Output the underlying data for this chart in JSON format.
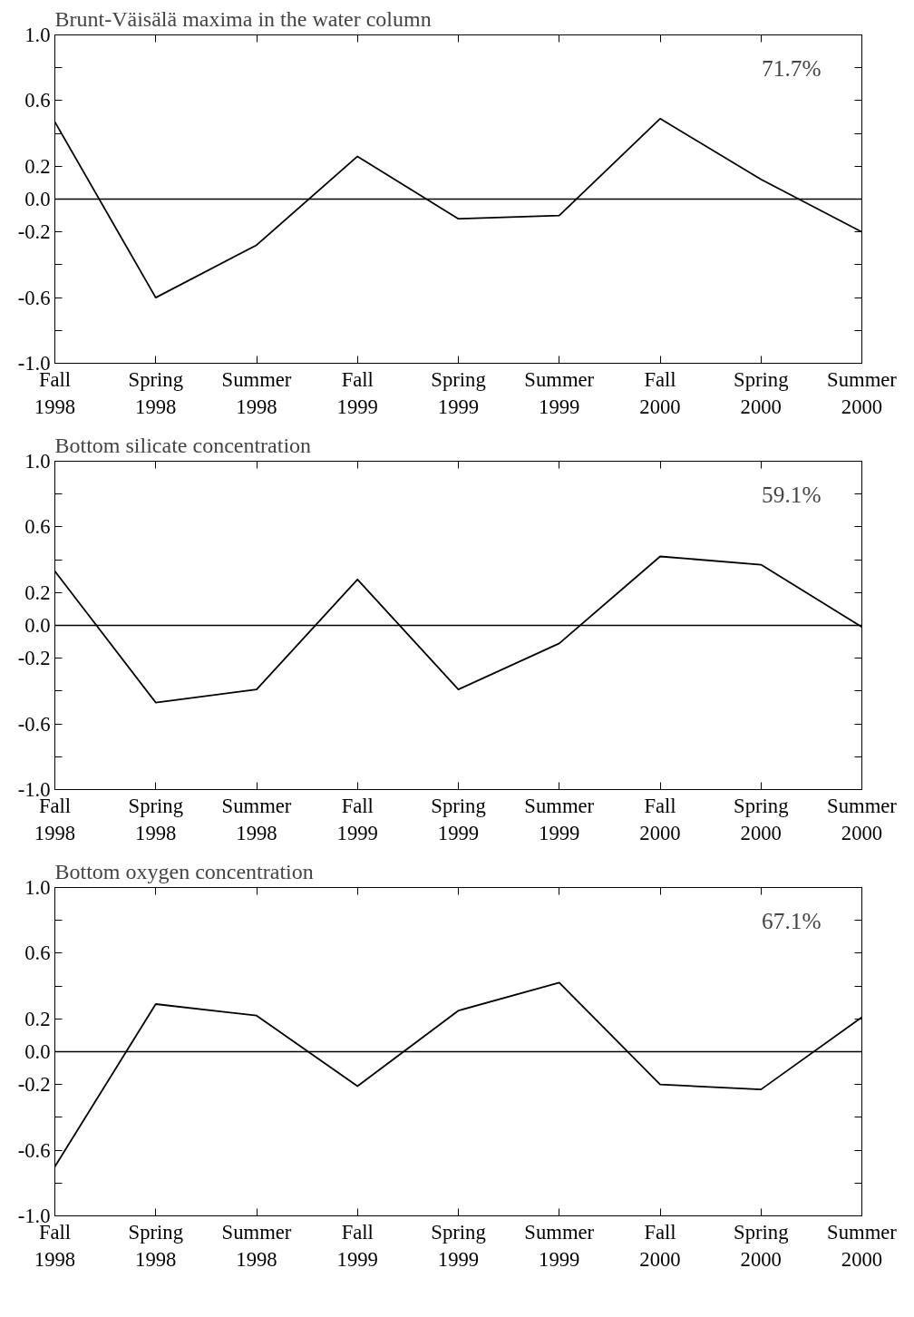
{
  "chart_data": [
    {
      "type": "line",
      "title": "Brunt-Väisälä maxima in the water column",
      "categories": [
        "Fall\n1998",
        "Spring\n1998",
        "Summer\n1998",
        "Fall\n1999",
        "Spring\n1999",
        "Summer\n1999",
        "Fall\n2000",
        "Spring\n2000",
        "Summer\n2000"
      ],
      "series": [
        {
          "color": "#000000",
          "values": [
            0.47,
            -0.6,
            -0.28,
            0.26,
            -0.12,
            -0.1,
            0.49,
            0.12,
            -0.2
          ]
        }
      ],
      "ylim": [
        -1,
        1
      ],
      "yticks": [
        {
          "value": -1,
          "label": "-1.0"
        },
        {
          "value": -0.8,
          "label": null
        },
        -0.6,
        {
          "value": -0.4,
          "label": null
        },
        -0.2,
        {
          "value": 0,
          "label": "0.0"
        },
        0.2,
        {
          "value": 0.4,
          "label": null
        },
        0.6,
        {
          "value": 0.8,
          "label": null
        },
        {
          "value": 1,
          "label": "1.0"
        }
      ],
      "annotations": [
        "71.7%"
      ],
      "ref_lines": [
        {
          "axis": "y",
          "value": 0,
          "color": "#000000"
        }
      ],
      "grid": false,
      "marker": "none",
      "line_style": "solid"
    },
    {
      "type": "line",
      "title": "Bottom silicate concentration",
      "categories": [
        "Fall\n1998",
        "Spring\n1998",
        "Summer\n1998",
        "Fall\n1999",
        "Spring\n1999",
        "Summer\n1999",
        "Fall\n2000",
        "Spring\n2000",
        "Summer\n2000"
      ],
      "series": [
        {
          "color": "#000000",
          "values": [
            0.33,
            -0.47,
            -0.39,
            0.28,
            -0.39,
            -0.11,
            0.42,
            0.37,
            -0.01
          ]
        }
      ],
      "ylim": [
        -1,
        1
      ],
      "yticks": [
        {
          "value": -1,
          "label": "-1.0"
        },
        {
          "value": -0.8,
          "label": null
        },
        -0.6,
        {
          "value": -0.4,
          "label": null
        },
        -0.2,
        {
          "value": 0,
          "label": "0.0"
        },
        0.2,
        {
          "value": 0.4,
          "label": null
        },
        0.6,
        {
          "value": 0.8,
          "label": null
        },
        {
          "value": 1,
          "label": "1.0"
        }
      ],
      "annotations": [
        "59.1%"
      ],
      "ref_lines": [
        {
          "axis": "y",
          "value": 0,
          "color": "#000000"
        }
      ],
      "grid": false,
      "marker": "none",
      "line_style": "solid"
    },
    {
      "type": "line",
      "title": "Bottom oxygen concentration",
      "categories": [
        "Fall\n1998",
        "Spring\n1998",
        "Summer\n1998",
        "Fall\n1999",
        "Spring\n1999",
        "Summer\n1999",
        "Fall\n2000",
        "Spring\n2000",
        "Summer\n2000"
      ],
      "series": [
        {
          "color": "#000000",
          "values": [
            -0.7,
            0.29,
            0.22,
            -0.21,
            0.25,
            0.42,
            -0.2,
            -0.23,
            0.21
          ]
        }
      ],
      "ylim": [
        -1,
        1
      ],
      "yticks": [
        {
          "value": -1,
          "label": "-1.0"
        },
        {
          "value": -0.8,
          "label": null
        },
        -0.6,
        {
          "value": -0.4,
          "label": null
        },
        -0.2,
        {
          "value": 0,
          "label": "0.0"
        },
        0.2,
        {
          "value": 0.4,
          "label": null
        },
        0.6,
        {
          "value": 0.8,
          "label": null
        },
        {
          "value": 1,
          "label": "1.0"
        }
      ],
      "annotations": [
        "67.1%"
      ],
      "ref_lines": [
        {
          "axis": "y",
          "value": 0,
          "color": "#000000"
        }
      ],
      "grid": false,
      "marker": "none",
      "line_style": "solid"
    }
  ]
}
